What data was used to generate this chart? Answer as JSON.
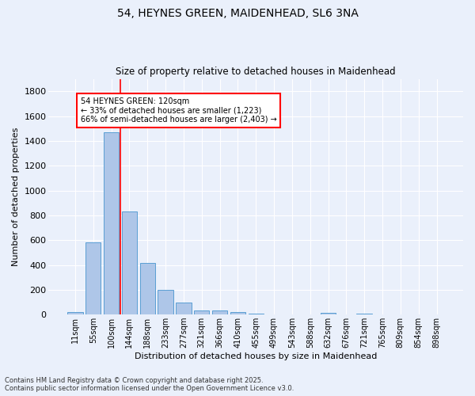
{
  "title_line1": "54, HEYNES GREEN, MAIDENHEAD, SL6 3NA",
  "title_line2": "Size of property relative to detached houses in Maidenhead",
  "xlabel": "Distribution of detached houses by size in Maidenhead",
  "ylabel": "Number of detached properties",
  "categories": [
    "11sqm",
    "55sqm",
    "100sqm",
    "144sqm",
    "188sqm",
    "233sqm",
    "277sqm",
    "321sqm",
    "366sqm",
    "410sqm",
    "455sqm",
    "499sqm",
    "543sqm",
    "588sqm",
    "632sqm",
    "676sqm",
    "721sqm",
    "765sqm",
    "809sqm",
    "854sqm",
    "898sqm"
  ],
  "values": [
    20,
    585,
    1470,
    830,
    415,
    200,
    100,
    35,
    35,
    20,
    10,
    0,
    0,
    0,
    15,
    0,
    10,
    0,
    0,
    0,
    0
  ],
  "bar_color": "#aec6e8",
  "bar_edge_color": "#5a9fd4",
  "vline_color": "red",
  "vline_x": 2.5,
  "annotation_text": "54 HEYNES GREEN: 120sqm\n← 33% of detached houses are smaller (1,223)\n66% of semi-detached houses are larger (2,403) →",
  "annotation_box_facecolor": "white",
  "annotation_box_edgecolor": "red",
  "ylim": [
    0,
    1900
  ],
  "yticks": [
    0,
    200,
    400,
    600,
    800,
    1000,
    1200,
    1400,
    1600,
    1800
  ],
  "background_color": "#eaf0fb",
  "grid_color": "#ffffff",
  "footer_line1": "Contains HM Land Registry data © Crown copyright and database right 2025.",
  "footer_line2": "Contains public sector information licensed under the Open Government Licence v3.0.",
  "figsize": [
    6.0,
    5.0
  ],
  "dpi": 100
}
